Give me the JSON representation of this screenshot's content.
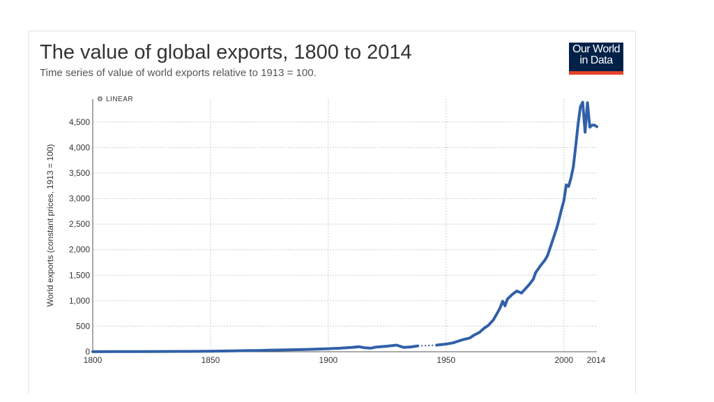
{
  "header": {
    "title": "The value of global exports, 1800 to 2014",
    "subtitle": "Time series of value of world exports relative to 1913 = 100."
  },
  "logo": {
    "line1": "Our World",
    "line2": "in Data",
    "colors": {
      "background": "#002147",
      "bar": "#e5432b"
    }
  },
  "scale_toggle": {
    "label": "LINEAR",
    "icon": "gear-icon"
  },
  "colors": {
    "line": "#3060a8",
    "grid": "#cccccc",
    "axis": "#333333"
  },
  "chart_data": {
    "type": "line",
    "title": "The value of global exports, 1800 to 2014",
    "subtitle": "Time series of value of world exports relative to 1913 = 100.",
    "xlabel": "",
    "ylabel": "World exports (constant prices, 1913 = 100)",
    "xlim": [
      1800,
      2014
    ],
    "ylim": [
      0,
      4950
    ],
    "x_ticks": [
      1800,
      1850,
      1900,
      1950,
      2000,
      2014
    ],
    "x_tick_labels": [
      "1800",
      "1850",
      "1900",
      "1950",
      "2000",
      "2014"
    ],
    "y_ticks": [
      0,
      500,
      1000,
      1500,
      2000,
      2500,
      3000,
      3500,
      4000,
      4500
    ],
    "y_tick_labels": [
      "0",
      "500",
      "1,000",
      "1,500",
      "2,000",
      "2,500",
      "3,000",
      "3,500",
      "4,000",
      "4,500"
    ],
    "grid": true,
    "scale": "linear",
    "series": [
      {
        "x": [
          1800,
          1810,
          1820,
          1830,
          1840,
          1850,
          1855,
          1860,
          1865,
          1870,
          1875,
          1880,
          1885,
          1890,
          1895,
          1900,
          1905,
          1910,
          1913,
          1915,
          1918,
          1920,
          1925,
          1929,
          1932,
          1935,
          1938,
          1946,
          1950,
          1953,
          1955,
          1957,
          1960,
          1962,
          1964,
          1966,
          1968,
          1970,
          1972,
          1973,
          1974,
          1975,
          1976,
          1978,
          1980,
          1981,
          1982,
          1983,
          1985,
          1987,
          1988,
          1990,
          1992,
          1993,
          1995,
          1997,
          1998,
          1999,
          2000,
          2001,
          2002,
          2003,
          2004,
          2005,
          2006,
          2007,
          2008,
          2009,
          2010,
          2011,
          2012,
          2013,
          2014
        ],
        "y": [
          2,
          3,
          4,
          5,
          7,
          10,
          13,
          17,
          22,
          25,
          30,
          35,
          40,
          45,
          52,
          60,
          70,
          85,
          100,
          80,
          70,
          90,
          110,
          130,
          85,
          95,
          115,
          130,
          150,
          175,
          205,
          235,
          270,
          330,
          375,
          455,
          520,
          620,
          780,
          870,
          990,
          900,
          1030,
          1120,
          1190,
          1170,
          1150,
          1200,
          1300,
          1420,
          1550,
          1680,
          1800,
          1880,
          2150,
          2430,
          2600,
          2790,
          2960,
          3270,
          3240,
          3400,
          3620,
          4020,
          4450,
          4800,
          4890,
          4300,
          4880,
          4400,
          4440,
          4440,
          4410
        ],
        "gap": [
          1938,
          1946
        ]
      }
    ]
  }
}
